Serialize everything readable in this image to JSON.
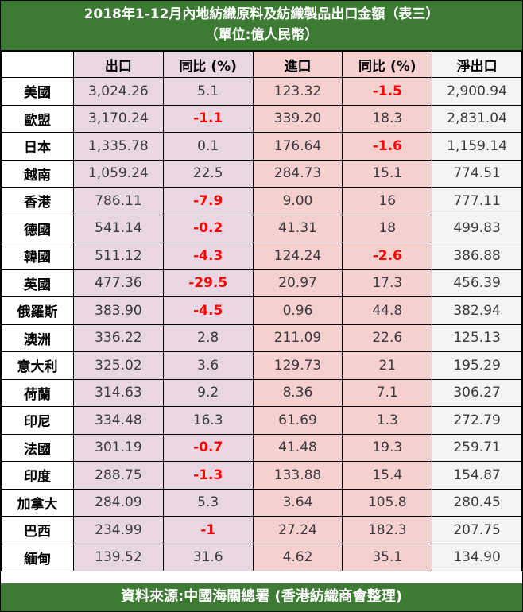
{
  "title": {
    "line1": "2018年1-12月內地紡織原料及紡織製品出口金額（表三）",
    "line2": "（單位:億人民幣）"
  },
  "headers": [
    "",
    "出口",
    "同比 (%)",
    "進口",
    "同比 (%)",
    "淨出口"
  ],
  "rows": [
    {
      "country": "美國",
      "export": "3,024.26",
      "export_yoy": "5.1",
      "import": "123.32",
      "import_yoy": "-1.5",
      "net": "2,900.94"
    },
    {
      "country": "歐盟",
      "export": "3,170.24",
      "export_yoy": "-1.1",
      "import": "339.20",
      "import_yoy": "18.3",
      "net": "2,831.04"
    },
    {
      "country": "日本",
      "export": "1,335.78",
      "export_yoy": "0.1",
      "import": "176.64",
      "import_yoy": "-1.6",
      "net": "1,159.14"
    },
    {
      "country": "越南",
      "export": "1,059.24",
      "export_yoy": "22.5",
      "import": "284.73",
      "import_yoy": "15.1",
      "net": "774.51"
    },
    {
      "country": "香港",
      "export": "786.11",
      "export_yoy": "-7.9",
      "import": "9.00",
      "import_yoy": "16",
      "net": "777.11"
    },
    {
      "country": "德國",
      "export": "541.14",
      "export_yoy": "-0.2",
      "import": "41.31",
      "import_yoy": "18",
      "net": "499.83"
    },
    {
      "country": "韓國",
      "export": "511.12",
      "export_yoy": "-4.3",
      "import": "124.24",
      "import_yoy": "-2.6",
      "net": "386.88"
    },
    {
      "country": "英國",
      "export": "477.36",
      "export_yoy": "-29.5",
      "import": "20.97",
      "import_yoy": "17.3",
      "net": "456.39"
    },
    {
      "country": "俄羅斯",
      "export": "383.90",
      "export_yoy": "-4.5",
      "import": "0.96",
      "import_yoy": "44.8",
      "net": "382.94"
    },
    {
      "country": "澳洲",
      "export": "336.22",
      "export_yoy": "2.8",
      "import": "211.09",
      "import_yoy": "22.6",
      "net": "125.13"
    },
    {
      "country": "意大利",
      "export": "325.02",
      "export_yoy": "3.6",
      "import": "129.73",
      "import_yoy": "21",
      "net": "195.29"
    },
    {
      "country": "荷蘭",
      "export": "314.63",
      "export_yoy": "9.2",
      "import": "8.36",
      "import_yoy": "7.1",
      "net": "306.27"
    },
    {
      "country": "印尼",
      "export": "334.48",
      "export_yoy": "16.3",
      "import": "61.69",
      "import_yoy": "1.3",
      "net": "272.79"
    },
    {
      "country": "法國",
      "export": "301.19",
      "export_yoy": "-0.7",
      "import": "41.48",
      "import_yoy": "19.3",
      "net": "259.71"
    },
    {
      "country": "印度",
      "export": "288.75",
      "export_yoy": "-1.3",
      "import": "133.88",
      "import_yoy": "15.4",
      "net": "154.87"
    },
    {
      "country": "加拿大",
      "export": "284.09",
      "export_yoy": "5.3",
      "import": "3.64",
      "import_yoy": "105.8",
      "net": "280.45"
    },
    {
      "country": "巴西",
      "export": "234.99",
      "export_yoy": "-1",
      "import": "27.24",
      "import_yoy": "182.3",
      "net": "207.75"
    },
    {
      "country": "緬甸",
      "export": "139.52",
      "export_yoy": "31.6",
      "import": "4.62",
      "import_yoy": "35.1",
      "net": "134.90"
    }
  ],
  "footer": "資料來源:中國海關總署 (香港紡織商會整理)",
  "colors": {
    "banner": "#3d7a33",
    "export_cols": "#e8d7e2",
    "import_cols": "#f6cfcf",
    "net_col": "#f4f4f4",
    "negative": "#ff0000"
  }
}
